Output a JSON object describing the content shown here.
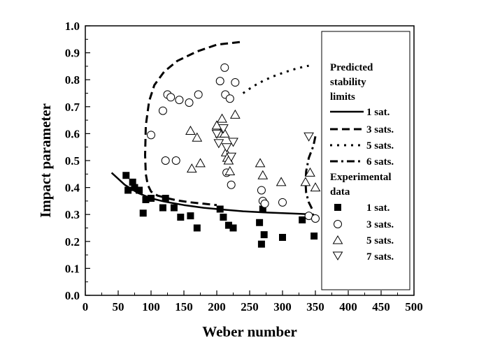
{
  "chart_data": {
    "type": "scatter",
    "xlabel": "Weber number",
    "ylabel": "Impact parameter",
    "xlim": [
      0,
      500
    ],
    "ylim": [
      0,
      1.0
    ],
    "x_ticks": [
      "0",
      "50",
      "100",
      "150",
      "200",
      "250",
      "300",
      "350",
      "400",
      "450",
      "500"
    ],
    "y_ticks": [
      "0.0",
      "0.1",
      "0.2",
      "0.3",
      "0.4",
      "0.5",
      "0.6",
      "0.7",
      "0.8",
      "0.9",
      "1.0"
    ],
    "legend": {
      "placement": "right",
      "heading_predicted": [
        "Predicted",
        "stability",
        "limits"
      ],
      "heading_experimental": [
        "Experimental",
        "data"
      ],
      "lines": [
        {
          "label": "1 sat.",
          "dash": "solid"
        },
        {
          "label": "3 sats.",
          "dash": "dash"
        },
        {
          "label": "5 sats.",
          "dash": "dot"
        },
        {
          "label": "6 sats.",
          "dash": "dashdot"
        }
      ],
      "markers": [
        {
          "label": "1 sat.",
          "marker": "filled-square"
        },
        {
          "label": "3 sats.",
          "marker": "open-circle"
        },
        {
          "label": "5 sats.",
          "marker": "open-triangle-up"
        },
        {
          "label": "7 sats.",
          "marker": "open-triangle-down"
        }
      ]
    },
    "lines": [
      {
        "name": "1 sat.",
        "dash": "solid",
        "x": [
          40,
          60,
          80,
          100,
          120,
          150,
          180,
          210,
          240,
          270,
          300,
          330,
          348
        ],
        "y": [
          0.455,
          0.41,
          0.38,
          0.36,
          0.348,
          0.335,
          0.325,
          0.318,
          0.312,
          0.308,
          0.305,
          0.302,
          0.3
        ]
      },
      {
        "name": "3 sats.",
        "dash": "dash",
        "x": [
          235,
          200,
          170,
          140,
          120,
          105,
          97,
          92,
          91,
          92,
          95,
          100,
          110,
          125,
          140,
          160,
          180,
          200
        ],
        "y": [
          0.94,
          0.93,
          0.905,
          0.87,
          0.83,
          0.78,
          0.72,
          0.63,
          0.52,
          0.45,
          0.41,
          0.385,
          0.37,
          0.36,
          0.352,
          0.345,
          0.34,
          0.335
        ]
      },
      {
        "name": "5 sats.",
        "dash": "dot",
        "x": [
          240,
          255,
          270,
          285,
          300,
          315,
          330,
          340
        ],
        "y": [
          0.75,
          0.775,
          0.795,
          0.812,
          0.825,
          0.837,
          0.847,
          0.852
        ]
      },
      {
        "name": "6 sats.",
        "dash": "dashdot",
        "x": [
          350,
          347,
          340,
          336,
          335,
          336,
          340,
          347
        ],
        "y": [
          0.59,
          0.555,
          0.51,
          0.46,
          0.42,
          0.38,
          0.345,
          0.31
        ]
      }
    ],
    "series": [
      {
        "name": "1 sat.",
        "marker": "filled-square",
        "x": [
          62,
          65,
          72,
          75,
          82,
          88,
          92,
          100,
          118,
          122,
          135,
          145,
          160,
          170,
          205,
          210,
          218,
          225,
          265,
          268,
          270,
          272,
          300,
          330,
          348
        ],
        "y": [
          0.445,
          0.39,
          0.42,
          0.4,
          0.39,
          0.305,
          0.355,
          0.36,
          0.325,
          0.36,
          0.325,
          0.29,
          0.295,
          0.25,
          0.32,
          0.29,
          0.26,
          0.25,
          0.27,
          0.19,
          0.32,
          0.225,
          0.215,
          0.28,
          0.22
        ]
      },
      {
        "name": "3 sats.",
        "marker": "open-circle",
        "x": [
          100,
          118,
          122,
          125,
          130,
          138,
          143,
          158,
          172,
          205,
          212,
          213,
          215,
          220,
          222,
          228,
          268,
          270,
          273,
          300,
          340,
          350
        ],
        "y": [
          0.595,
          0.685,
          0.5,
          0.745,
          0.735,
          0.5,
          0.725,
          0.715,
          0.745,
          0.795,
          0.845,
          0.745,
          0.455,
          0.73,
          0.41,
          0.79,
          0.39,
          0.35,
          0.34,
          0.345,
          0.295,
          0.285
        ]
      },
      {
        "name": "5 sats.",
        "marker": "open-triangle-up",
        "x": [
          160,
          162,
          170,
          175,
          200,
          205,
          208,
          212,
          214,
          216,
          218,
          220,
          228,
          266,
          270,
          298,
          335,
          342,
          350
        ],
        "y": [
          0.61,
          0.47,
          0.585,
          0.49,
          0.63,
          0.6,
          0.655,
          0.6,
          0.53,
          0.51,
          0.5,
          0.46,
          0.67,
          0.49,
          0.445,
          0.42,
          0.42,
          0.455,
          0.4
        ]
      },
      {
        "name": "7 sats.",
        "marker": "open-triangle-down",
        "x": [
          200,
          203,
          210,
          215,
          222,
          225,
          340
        ],
        "y": [
          0.6,
          0.565,
          0.62,
          0.55,
          0.515,
          0.57,
          0.59
        ]
      }
    ]
  }
}
